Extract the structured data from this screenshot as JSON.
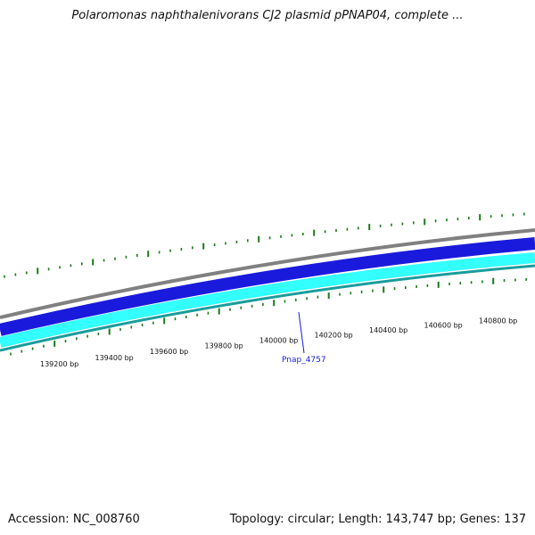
{
  "title": "Polaromonas naphthalenivorans CJ2 plasmid pPNAP04, complete ...",
  "footer": {
    "accession": "Accession: NC_008760",
    "topology": "Topology: circular; Length: 143,747 bp; Genes: 137"
  },
  "ruler": {
    "labels": [
      {
        "pos": 139200,
        "text": "139200 bp"
      },
      {
        "pos": 139400,
        "text": "139400 bp"
      },
      {
        "pos": 139600,
        "text": "139600 bp"
      },
      {
        "pos": 139800,
        "text": "139800 bp"
      },
      {
        "pos": 140000,
        "text": "140000 bp"
      },
      {
        "pos": 140200,
        "text": "140200 bp"
      },
      {
        "pos": 140400,
        "text": "140400 bp"
      },
      {
        "pos": 140600,
        "text": "140600 bp"
      },
      {
        "pos": 140800,
        "text": "140800 bp"
      }
    ]
  },
  "gene": {
    "label": "Pnap_4757"
  },
  "colors": {
    "backbone": "#808080",
    "forward_strand": "#1a1adc",
    "reverse_strand": "#33ffff",
    "reverse_edge": "#199c9c",
    "gc_ticks": "#1a7a1a",
    "gene_label": "#1a1adc"
  }
}
